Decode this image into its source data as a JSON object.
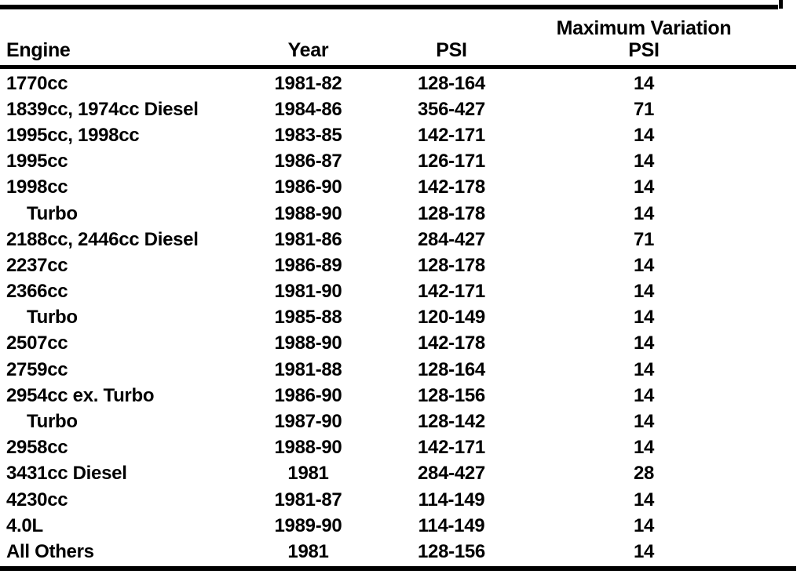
{
  "table": {
    "header": {
      "engine": "Engine",
      "year": "Year",
      "psi": "PSI",
      "max_variation_line1": "Maximum Variation",
      "max_variation_line2": "PSI"
    },
    "rows": [
      {
        "engine": "1770cc",
        "indent": false,
        "year": "1981-82",
        "psi": "128-164",
        "max_variation": "14"
      },
      {
        "engine": "1839cc, 1974cc Diesel",
        "indent": false,
        "year": "1984-86",
        "psi": "356-427",
        "max_variation": "71"
      },
      {
        "engine": "1995cc, 1998cc",
        "indent": false,
        "year": "1983-85",
        "psi": "142-171",
        "max_variation": "14"
      },
      {
        "engine": "1995cc",
        "indent": false,
        "year": "1986-87",
        "psi": "126-171",
        "max_variation": "14"
      },
      {
        "engine": "1998cc",
        "indent": false,
        "year": "1986-90",
        "psi": "142-178",
        "max_variation": "14"
      },
      {
        "engine": "Turbo",
        "indent": true,
        "year": "1988-90",
        "psi": "128-178",
        "max_variation": "14"
      },
      {
        "engine": "2188cc, 2446cc Diesel",
        "indent": false,
        "year": "1981-86",
        "psi": "284-427",
        "max_variation": "71"
      },
      {
        "engine": "2237cc",
        "indent": false,
        "year": "1986-89",
        "psi": "128-178",
        "max_variation": "14"
      },
      {
        "engine": "2366cc",
        "indent": false,
        "year": "1981-90",
        "psi": "142-171",
        "max_variation": "14"
      },
      {
        "engine": "Turbo",
        "indent": true,
        "year": "1985-88",
        "psi": "120-149",
        "max_variation": "14"
      },
      {
        "engine": "2507cc",
        "indent": false,
        "year": "1988-90",
        "psi": "142-178",
        "max_variation": "14"
      },
      {
        "engine": "2759cc",
        "indent": false,
        "year": "1981-88",
        "psi": "128-164",
        "max_variation": "14"
      },
      {
        "engine": "2954cc ex. Turbo",
        "indent": false,
        "year": "1986-90",
        "psi": "128-156",
        "max_variation": "14"
      },
      {
        "engine": "Turbo",
        "indent": true,
        "year": "1987-90",
        "psi": "128-142",
        "max_variation": "14"
      },
      {
        "engine": "2958cc",
        "indent": false,
        "year": "1988-90",
        "psi": "142-171",
        "max_variation": "14"
      },
      {
        "engine": "3431cc Diesel",
        "indent": false,
        "year": "1981",
        "psi": "284-427",
        "max_variation": "28"
      },
      {
        "engine": "4230cc",
        "indent": false,
        "year": "1981-87",
        "psi": "114-149",
        "max_variation": "14"
      },
      {
        "engine": "4.0L",
        "indent": false,
        "year": "1989-90",
        "psi": "114-149",
        "max_variation": "14"
      },
      {
        "engine": "All Others",
        "indent": false,
        "year": "1981",
        "psi": "128-156",
        "max_variation": "14"
      }
    ]
  }
}
